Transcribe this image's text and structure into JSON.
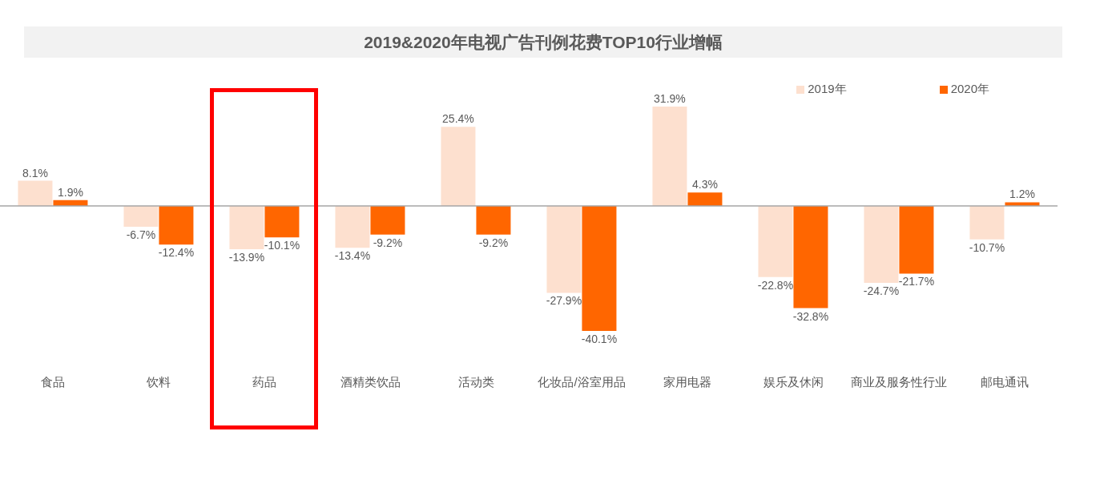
{
  "chart_data": {
    "type": "bar",
    "title": "2019&2020年电视广告刊例花费TOP10行业增幅",
    "categories": [
      "食品",
      "饮料",
      "药品",
      "酒精类饮品",
      "活动类",
      "化妆品/浴室用品",
      "家用电器",
      "娱乐及休闲",
      "商业及服务性行业",
      "邮电通讯"
    ],
    "series": [
      {
        "name": "2019年",
        "color": "#fde0cf",
        "values": [
          8.1,
          -6.7,
          -13.9,
          -13.4,
          25.4,
          -27.9,
          31.9,
          -22.8,
          -24.7,
          -10.7
        ],
        "value_labels": [
          "8.1%",
          "-6.7%",
          "-13.9%",
          "-13.4%",
          "25.4%",
          "-27.9%",
          "31.9%",
          "-22.8%",
          "-24.7%",
          "-10.7%"
        ]
      },
      {
        "name": "2020年",
        "color": "#ff6600",
        "values": [
          1.9,
          -12.4,
          -10.1,
          -9.2,
          -9.2,
          -40.1,
          4.3,
          -32.8,
          -21.7,
          1.2
        ],
        "value_labels": [
          "1.9%",
          "-12.4%",
          "-10.1%",
          "-9.2%",
          "-9.2%",
          "-40.1%",
          "4.3%",
          "-32.8%",
          "-21.7%",
          "1.2%"
        ]
      }
    ],
    "legend": "top right"
  }
}
